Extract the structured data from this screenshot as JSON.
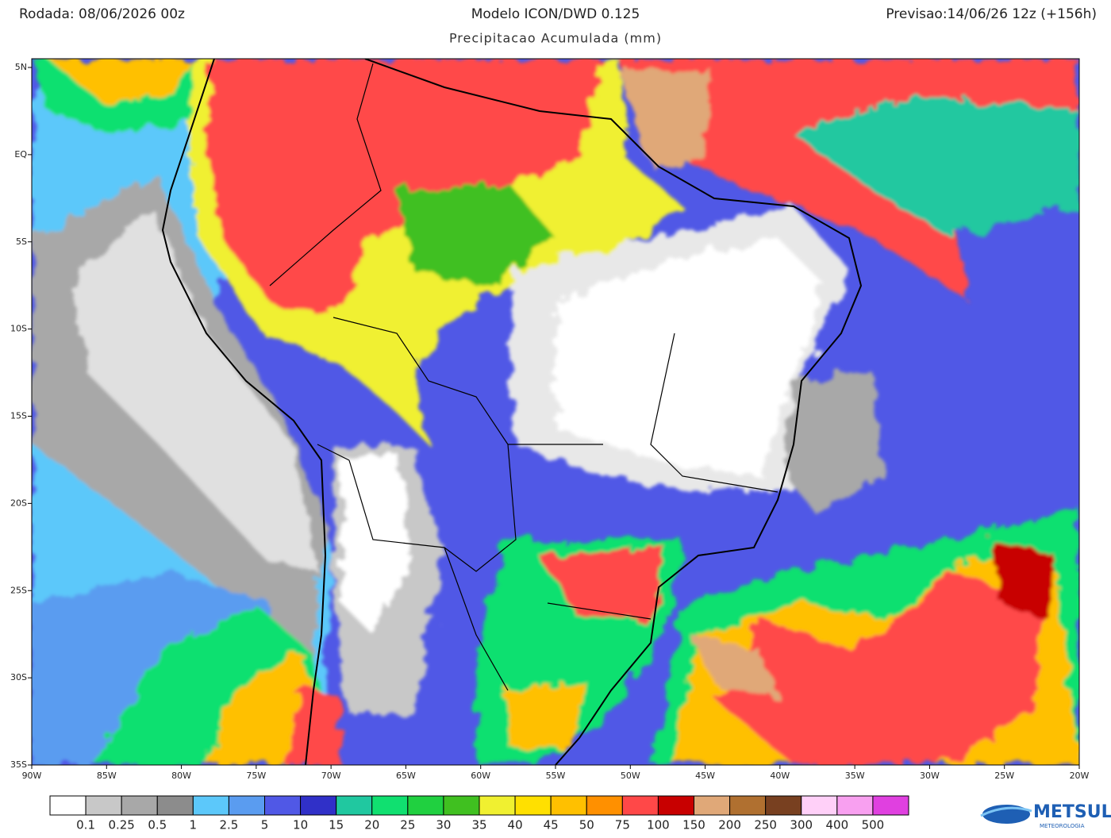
{
  "header": {
    "left": "Rodada: 08/06/2026 00z",
    "title": "Modelo ICON/DWD 0.125",
    "right": "Previsao:14/06/26 12z (+156h)",
    "subtitle": "Precipitacao Acumulada (mm)"
  },
  "map": {
    "lat_labels": [
      "5N",
      "EQ",
      "5S",
      "10S",
      "15S",
      "20S",
      "25S",
      "30S",
      "35S"
    ],
    "lon_labels": [
      "90W",
      "85W",
      "80W",
      "75W",
      "70W",
      "65W",
      "60W",
      "55W",
      "50W",
      "45W",
      "40W",
      "35W",
      "30W",
      "25W",
      "20W"
    ]
  },
  "colorbar": {
    "labels": [
      "0.1",
      "0.25",
      "0.5",
      "1",
      "2.5",
      "5",
      "10",
      "15",
      "20",
      "25",
      "30",
      "35",
      "40",
      "45",
      "50",
      "75",
      "100",
      "150",
      "200",
      "250",
      "300",
      "400",
      "500"
    ],
    "colors": [
      "#ffffff",
      "#c8c8c8",
      "#a8a8a8",
      "#8c8c8c",
      "#5cc8fa",
      "#5a9cf0",
      "#5058e6",
      "#3030c8",
      "#20c8a0",
      "#10e070",
      "#20d040",
      "#40c020",
      "#f0f030",
      "#ffe000",
      "#ffc000",
      "#ff9000",
      "#ff4848",
      "#c80000",
      "#e0a878",
      "#b07030",
      "#784020",
      "#ffd0f8",
      "#f8a0f0",
      "#e040e0",
      "#900090"
    ]
  },
  "logo": {
    "name": "METSUL",
    "tagline": "METEOROLOGIA"
  }
}
